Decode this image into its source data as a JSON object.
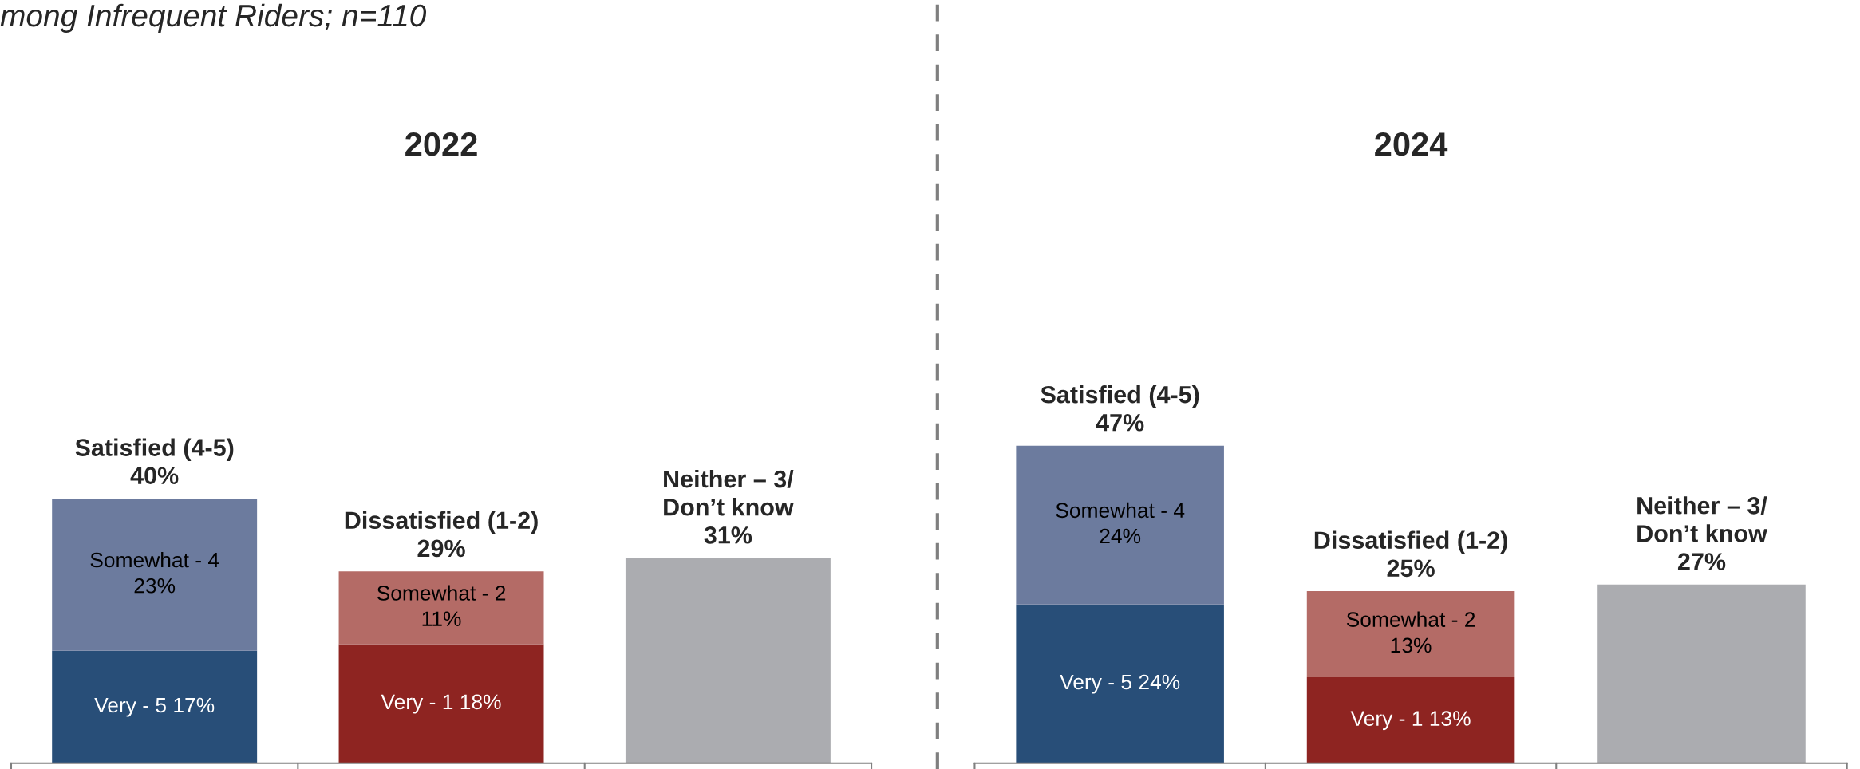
{
  "chart_data": [
    {
      "type": "bar",
      "stacked": true,
      "title": "2022",
      "subtitle": "mong Infrequent Riders; n=110",
      "categories": [
        null,
        null,
        null
      ],
      "series": [
        {
          "values": [
            17,
            18,
            31
          ],
          "colors": [
            "#284e78",
            "#8e2421",
            "#abacb0"
          ],
          "value_labels": [
            "Very - 5 17%",
            "Very - 1 18%",
            null
          ]
        },
        {
          "values": [
            23,
            11,
            null
          ],
          "colors": [
            "#6c7b9e",
            "#b46b66",
            "#abacb0"
          ],
          "value_labels": [
            "Somewhat - 4\n23%",
            "Somewhat - 2\n11%",
            null
          ]
        }
      ],
      "totals": [
        "Satisfied (4-5)\n40%",
        "Dissatisfied (1-2)\n29%",
        "Neither – 3/\nDon’t know\n31%"
      ]
    },
    {
      "type": "bar",
      "stacked": true,
      "title": "2024",
      "categories": [
        null,
        null,
        null
      ],
      "series": [
        {
          "values": [
            24,
            13,
            27
          ],
          "colors": [
            "#284e78",
            "#8e2421",
            "#abacb0"
          ],
          "value_labels": [
            "Very - 5 24%",
            "Very - 1 13%",
            null
          ]
        },
        {
          "values": [
            24,
            13,
            null
          ],
          "colors": [
            "#6c7b9e",
            "#b46b66",
            "#abacb0"
          ],
          "value_labels": [
            "Somewhat - 4\n24%",
            "Somewhat - 2\n13%",
            null
          ]
        }
      ],
      "totals": [
        "Satisfied (4-5)\n47%",
        "Dissatisfied (1-2)\n25%",
        "Neither – 3/\nDon’t know\n27%"
      ]
    }
  ]
}
